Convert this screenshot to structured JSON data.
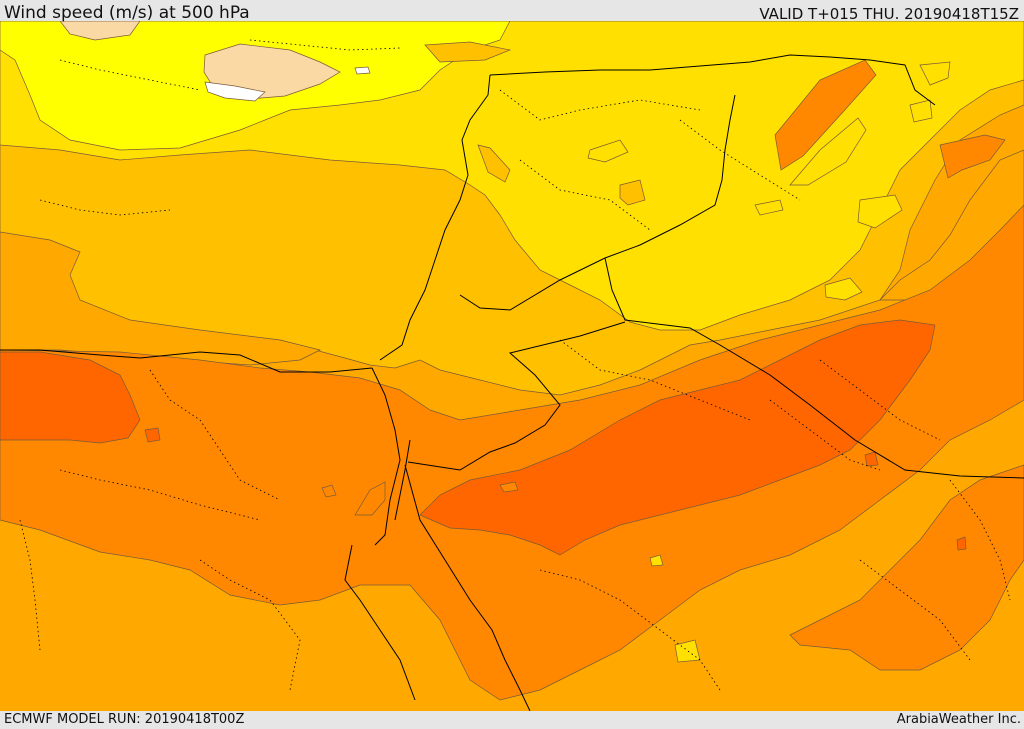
{
  "header": {
    "title": "Wind speed (m/s) at 500 hPa",
    "valid": "VALID T+015 THU. 20190418T15Z"
  },
  "footer": {
    "model_run": "ECMWF MODEL RUN: 20190418T00Z",
    "credit": "ArabiaWeather Inc."
  },
  "map": {
    "variable": "wind speed",
    "units": "m/s",
    "level": "500 hPa",
    "palette": {
      "pale": "#fbd9a5",
      "yellow": "#ffff00",
      "gold": "#ffe000",
      "amber": "#ffc000",
      "orange_light": "#ffa800",
      "orange": "#ff8800",
      "orange_dark": "#ff6600",
      "red_orange": "#ff5500"
    }
  }
}
